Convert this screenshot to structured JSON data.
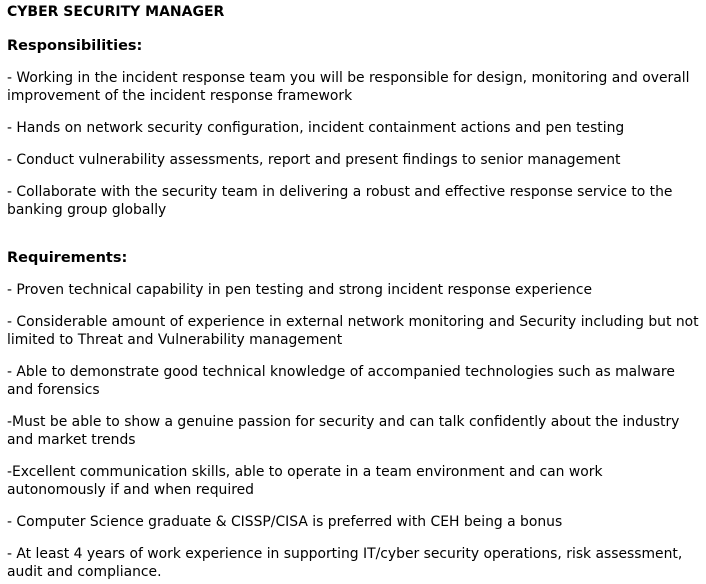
{
  "document": {
    "title": "CYBER SECURITY MANAGER",
    "responsibilities": {
      "heading": "Responsibilities:",
      "items": [
        "- Working in the incident response team you will be responsible for design, monitoring and overall improvement of the incident response framework",
        "- Hands on network security configuration, incident containment actions and pen testing",
        "- Conduct vulnerability assessments, report and present findings to senior management",
        "- Collaborate with the security team in delivering a robust and effective response service to the banking group globally"
      ]
    },
    "requirements": {
      "heading": "Requirements:",
      "items": [
        "- Proven technical capability in pen testing and strong incident response experience",
        "- Considerable amount of experience in external network monitoring and Security including but not limited to Threat and Vulnerability management",
        "- Able to demonstrate good technical knowledge of accompanied technologies such as malware and forensics",
        "-Must be able to show a genuine passion for security and can talk confidently about the industry and market trends",
        "-Excellent communication skills, able to operate in a team environment and can work autonomously if and when required",
        "- Computer Science graduate & CISSP/CISA is preferred with CEH being a bonus",
        "- At least 4 years of work experience in supporting IT/cyber security operations, risk assessment, audit and compliance."
      ]
    }
  }
}
